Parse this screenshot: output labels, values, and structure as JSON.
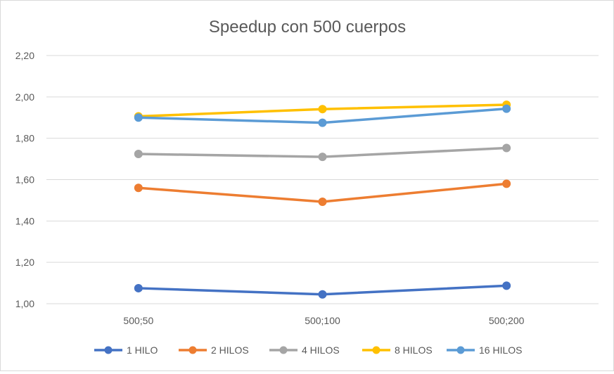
{
  "chart_data": {
    "type": "line",
    "title": "Speedup con 500 cuerpos",
    "categories": [
      "500;50",
      "500;100",
      "500;200"
    ],
    "ylim": [
      1.0,
      2.2
    ],
    "yticks": [
      1.0,
      1.2,
      1.4,
      1.6,
      1.8,
      2.0,
      2.2
    ],
    "ytick_labels": [
      "1,00",
      "1,20",
      "1,40",
      "1,60",
      "1,80",
      "2,00",
      "2,20"
    ],
    "grid": true,
    "legend_position": "bottom",
    "series": [
      {
        "name": "1 HILO",
        "color": "#4472c4",
        "values": [
          1.075,
          1.045,
          1.087
        ]
      },
      {
        "name": "2 HILOS",
        "color": "#ed7d31",
        "values": [
          1.56,
          1.493,
          1.58
        ]
      },
      {
        "name": "4 HILOS",
        "color": "#a5a5a5",
        "values": [
          1.724,
          1.71,
          1.753
        ]
      },
      {
        "name": "8 HILOS",
        "color": "#ffc000",
        "values": [
          1.906,
          1.941,
          1.962
        ]
      },
      {
        "name": "16 HILOS",
        "color": "#5b9bd5",
        "values": [
          1.9,
          1.875,
          1.943
        ]
      }
    ]
  }
}
